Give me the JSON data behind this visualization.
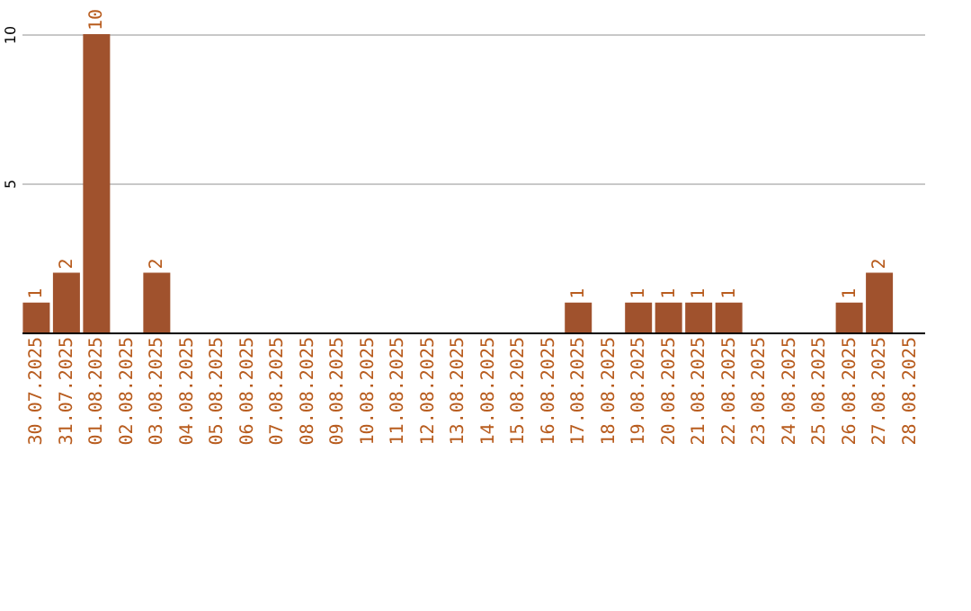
{
  "chart_data": {
    "type": "bar",
    "categories": [
      "30.07.2025",
      "31.07.2025",
      "01.08.2025",
      "02.08.2025",
      "03.08.2025",
      "04.08.2025",
      "05.08.2025",
      "06.08.2025",
      "07.08.2025",
      "08.08.2025",
      "09.08.2025",
      "10.08.2025",
      "11.08.2025",
      "12.08.2025",
      "13.08.2025",
      "14.08.2025",
      "15.08.2025",
      "16.08.2025",
      "17.08.2025",
      "18.08.2025",
      "19.08.2025",
      "20.08.2025",
      "21.08.2025",
      "22.08.2025",
      "23.08.2025",
      "24.08.2025",
      "25.08.2025",
      "26.08.2025",
      "27.08.2025",
      "28.08.2025"
    ],
    "values": [
      1,
      2,
      10,
      0,
      2,
      0,
      0,
      0,
      0,
      0,
      0,
      0,
      0,
      0,
      0,
      0,
      0,
      0,
      1,
      0,
      1,
      1,
      1,
      1,
      0,
      0,
      0,
      1,
      2,
      0
    ],
    "value_labels": [
      "1",
      "2",
      "10",
      null,
      "2",
      null,
      null,
      null,
      null,
      null,
      null,
      null,
      null,
      null,
      null,
      null,
      null,
      null,
      "1",
      null,
      "1",
      "1",
      "1",
      "1",
      null,
      null,
      null,
      "1",
      "2",
      null
    ],
    "color": "#a0522d",
    "ylim": [
      0,
      10
    ],
    "yticks": [
      5,
      10
    ],
    "grid": "y"
  }
}
